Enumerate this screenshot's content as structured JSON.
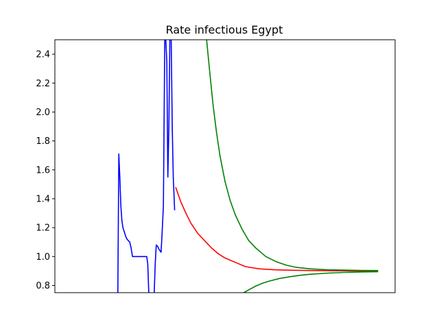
{
  "chart_data": {
    "type": "line",
    "title": "Rate infectious Egypt",
    "xlabel": "",
    "ylabel": "",
    "xlim": [
      0,
      100
    ],
    "ylim": [
      0.75,
      2.5
    ],
    "yticks": [
      0.8,
      1.0,
      1.2,
      1.4,
      1.6,
      1.8,
      2.0,
      2.2,
      2.4
    ],
    "ytick_labels": [
      "0.8",
      "1.0",
      "1.2",
      "1.4",
      "1.6",
      "1.8",
      "2.0",
      "2.2",
      "2.4"
    ],
    "grid": false,
    "legend": "none",
    "series": [
      {
        "color": "#0000ff",
        "segments": [
          {
            "x": [
              18.5,
              18.8,
              19.1,
              19.4,
              19.7,
              20.0,
              20.4,
              20.8,
              21.2,
              21.6,
              22.0,
              22.4,
              22.8,
              23.2,
              24.0,
              25.5,
              27.0,
              27.3,
              27.6
            ],
            "y": [
              0.75,
              1.71,
              1.55,
              1.35,
              1.25,
              1.2,
              1.17,
              1.14,
              1.12,
              1.11,
              1.1,
              1.06,
              1.0,
              1.0,
              1.0,
              1.0,
              1.0,
              0.95,
              0.75
            ]
          },
          {
            "x": [
              29.2,
              29.5,
              29.8,
              30.2,
              30.6,
              30.9,
              31.2,
              31.5,
              31.9,
              32.3,
              32.6,
              32.9,
              33.2,
              33.5,
              33.8,
              34.2,
              34.5,
              34.8,
              35.2
            ],
            "y": [
              0.75,
              0.95,
              1.08,
              1.07,
              1.05,
              1.04,
              1.03,
              1.15,
              1.35,
              2.5,
              2.5,
              2.35,
              1.55,
              1.9,
              2.5,
              2.5,
              1.9,
              1.55,
              1.32
            ]
          }
        ]
      },
      {
        "color": "#ff0000",
        "segments": [
          {
            "x": [
              35.5,
              37,
              38.5,
              40,
              42,
              44,
              46,
              48,
              50,
              53,
              56,
              60,
              65,
              70,
              75,
              80,
              85,
              90,
              95
            ],
            "y": [
              1.48,
              1.38,
              1.3,
              1.23,
              1.16,
              1.11,
              1.06,
              1.02,
              0.99,
              0.96,
              0.93,
              0.915,
              0.908,
              0.905,
              0.903,
              0.902,
              0.901,
              0.9,
              0.9
            ]
          }
        ]
      },
      {
        "color": "#008000",
        "segments": [
          {
            "x": [
              44.6,
              45.5,
              46.5,
              47.5,
              48.5,
              50,
              51.5,
              53,
              55,
              57,
              59,
              62,
              65,
              68,
              71,
              75,
              80,
              85,
              90,
              95
            ],
            "y": [
              2.5,
              2.28,
              2.05,
              1.86,
              1.7,
              1.52,
              1.39,
              1.29,
              1.19,
              1.11,
              1.06,
              1.0,
              0.965,
              0.94,
              0.925,
              0.915,
              0.909,
              0.906,
              0.904,
              0.903
            ]
          },
          {
            "x": [
              55.5,
              57,
              59,
              61,
              63,
              66,
              69,
              72,
              75,
              80,
              85,
              90,
              95
            ],
            "y": [
              0.75,
              0.77,
              0.795,
              0.815,
              0.83,
              0.848,
              0.86,
              0.87,
              0.877,
              0.885,
              0.89,
              0.893,
              0.895
            ]
          }
        ]
      }
    ]
  }
}
